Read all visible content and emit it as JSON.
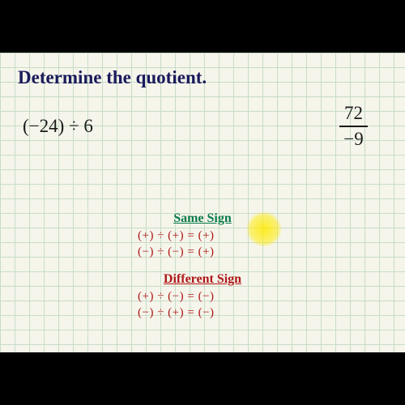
{
  "title": "Determine the quotient.",
  "problem1": "(−24) ÷ 6",
  "problem2": {
    "numerator": "72",
    "denominator": "−9"
  },
  "rules": {
    "same": {
      "heading": "Same Sign",
      "heading_color": "#0a7a4a",
      "lines": [
        "(+) ÷ (+) = (+)",
        "(−) ÷ (−) = (+)"
      ]
    },
    "different": {
      "heading": "Different Sign",
      "heading_color": "#b01818",
      "lines": [
        "(+) ÷ (−) = (−)",
        "(−) ÷ (+) = (−)"
      ]
    },
    "line_color": "#b01818",
    "line_fontsize": 15
  },
  "style": {
    "slide_width": 500,
    "slide_height": 370,
    "background_color": "#f5f5eb",
    "grid_color": "#c8dcc8",
    "grid_size": 18,
    "title_color": "#1a1a5c",
    "title_fontsize": 23,
    "text_color": "#1a1a1a",
    "highlight_color": "rgba(255,235,0,0.85)"
  }
}
